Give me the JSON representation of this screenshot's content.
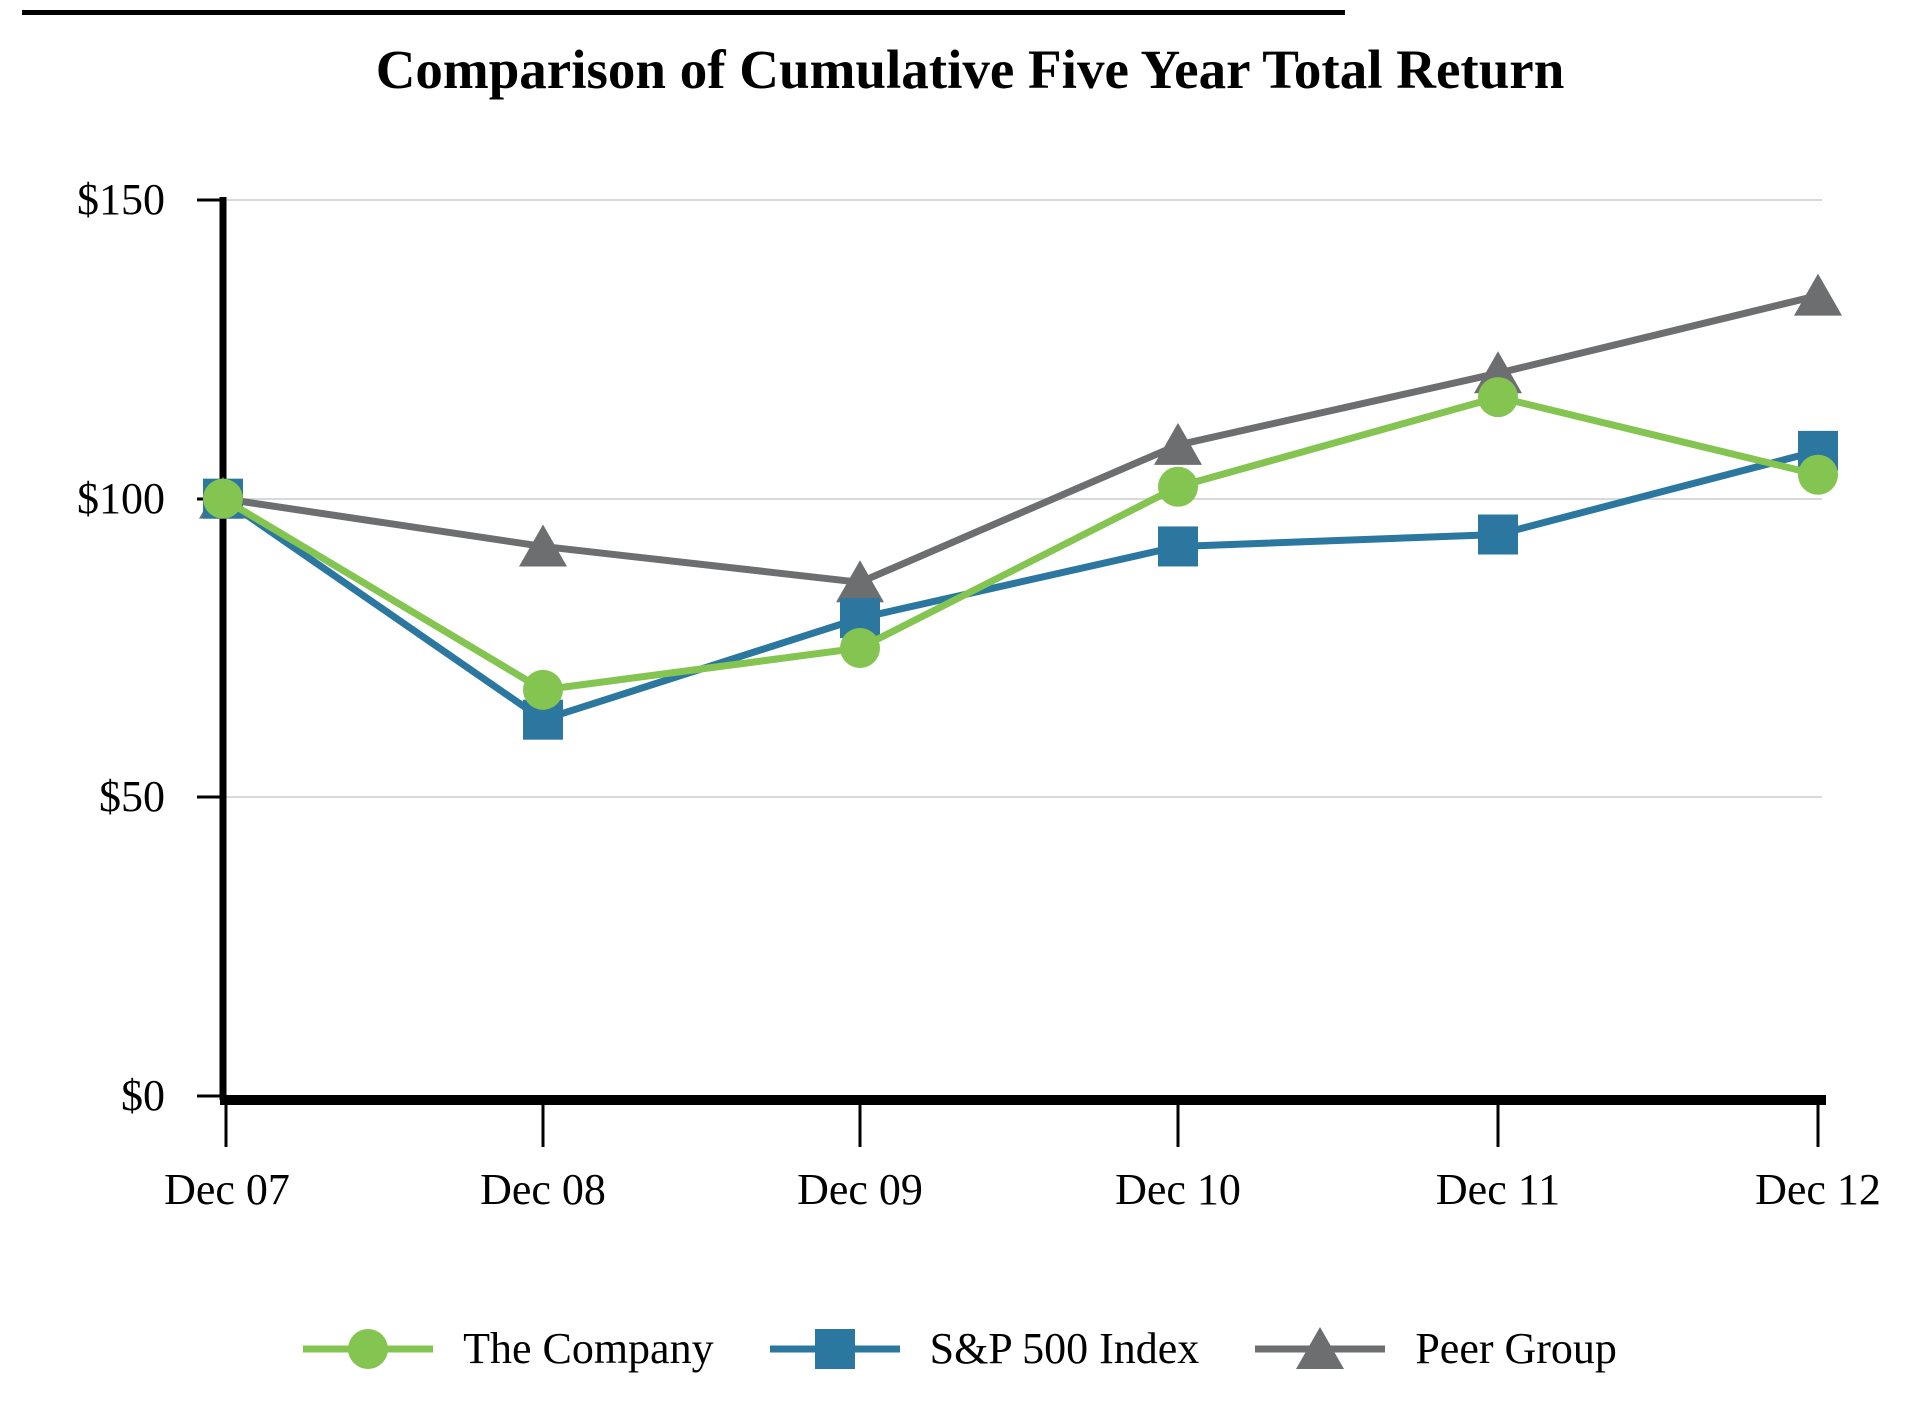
{
  "chart_data": {
    "type": "line",
    "title": "Comparison of Cumulative Five Year Total Return",
    "categories": [
      "Dec 07",
      "Dec 08",
      "Dec 09",
      "Dec 10",
      "Dec 11",
      "Dec 12"
    ],
    "series": [
      {
        "name": "The Company",
        "marker": "circle",
        "color": "#84C450",
        "values": [
          100,
          68,
          75,
          102,
          117,
          104
        ]
      },
      {
        "name": "S&P 500 Index",
        "marker": "square",
        "color": "#2B77A0",
        "values": [
          100,
          63,
          80,
          92,
          94,
          108
        ]
      },
      {
        "name": "Peer Group",
        "marker": "triangle",
        "color": "#6D6E70",
        "values": [
          100,
          92,
          86,
          109,
          121,
          134
        ]
      }
    ],
    "y_axis": {
      "tick_labels": [
        "$150",
        "$100",
        "$50",
        "$0"
      ],
      "tick_values": [
        150,
        100,
        50,
        0
      ],
      "range": [
        0,
        150
      ],
      "currency": "$"
    },
    "x_axis": {
      "range_labels": [
        "Dec 07",
        "Dec 12"
      ]
    },
    "grid": "horizontal-only",
    "gridline_color": "#D9D9D9",
    "axis_color": "#000000",
    "legend_position": "bottom",
    "background_color": "#FFFFFF"
  }
}
